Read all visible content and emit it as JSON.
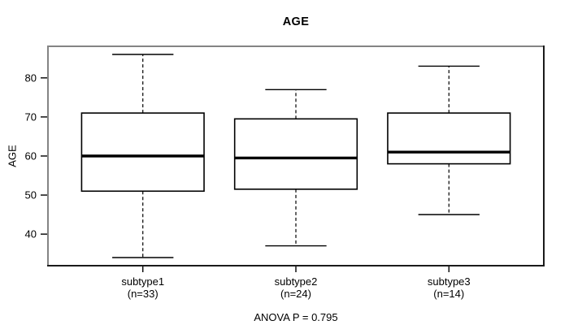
{
  "chart_data": {
    "type": "boxplot",
    "title": "AGE",
    "ylabel": "AGE",
    "annotation": "ANOVA P = 0.795",
    "yticks": [
      40,
      50,
      60,
      70,
      80
    ],
    "ylim_data": [
      34,
      86
    ],
    "grid": false,
    "groups": [
      {
        "label": "subtype1",
        "sublabel": "(n=33)",
        "n": 33,
        "whisker_low": 34,
        "q1": 51,
        "median": 60,
        "q3": 71,
        "whisker_high": 86
      },
      {
        "label": "subtype2",
        "sublabel": "(n=24)",
        "n": 24,
        "whisker_low": 37,
        "q1": 51.5,
        "median": 59.5,
        "q3": 69.5,
        "whisker_high": 77
      },
      {
        "label": "subtype3",
        "sublabel": "(n=14)",
        "n": 14,
        "whisker_low": 45,
        "q1": 58,
        "median": 61,
        "q3": 71,
        "whisker_high": 83
      }
    ],
    "colors": {
      "stroke": "#000000",
      "box_fill": "#ffffff",
      "frame_light": "#848484",
      "frame_dark": "#1b1b1b",
      "text": "#000000",
      "background": "#ffffff"
    }
  }
}
